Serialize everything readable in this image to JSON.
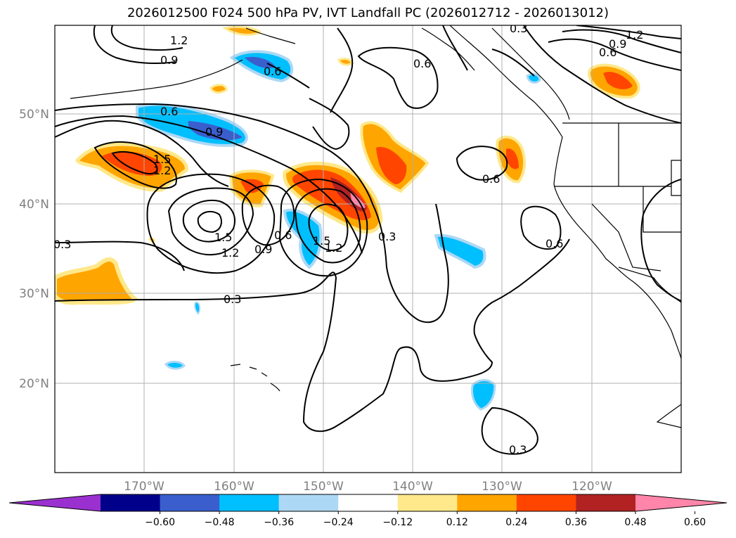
{
  "title": "2026012500 F024 500 hPa PV, IVT Landfall PC (2026012712 - 2026013012)",
  "map": {
    "lon_ticks": [
      "170°W",
      "160°W",
      "150°W",
      "140°W",
      "130°W",
      "120°W"
    ],
    "lat_ticks": [
      "50°N",
      "40°N",
      "30°N",
      "20°N"
    ],
    "gridlines": true,
    "tick_color": "#808080"
  },
  "contour_labels": [
    "1.2",
    "0.9",
    "0.6",
    "0.9",
    "1.5",
    "1.2",
    "0.3",
    "1.5",
    "1.2",
    "0.9",
    "0.6",
    "1.5",
    "1.2",
    "0.3",
    "0.6",
    "0.6",
    "0.6",
    "1.2",
    "0.9",
    "0.6",
    "0.3",
    "0.6",
    "0.3",
    "0.3"
  ],
  "colorbar": {
    "extend": "both",
    "colors": [
      "#9b30d0",
      "#00008b",
      "#3a5fcd",
      "#00bfff",
      "#add8f5",
      "#ffffff",
      "#ffe88a",
      "#ffa500",
      "#ff4500",
      "#b22222",
      "#ff85aa"
    ],
    "tick_labels": [
      "−0.60",
      "−0.48",
      "−0.36",
      "−0.24",
      "−0.12",
      "0.12",
      "0.24",
      "0.36",
      "0.48",
      "0.60"
    ]
  }
}
